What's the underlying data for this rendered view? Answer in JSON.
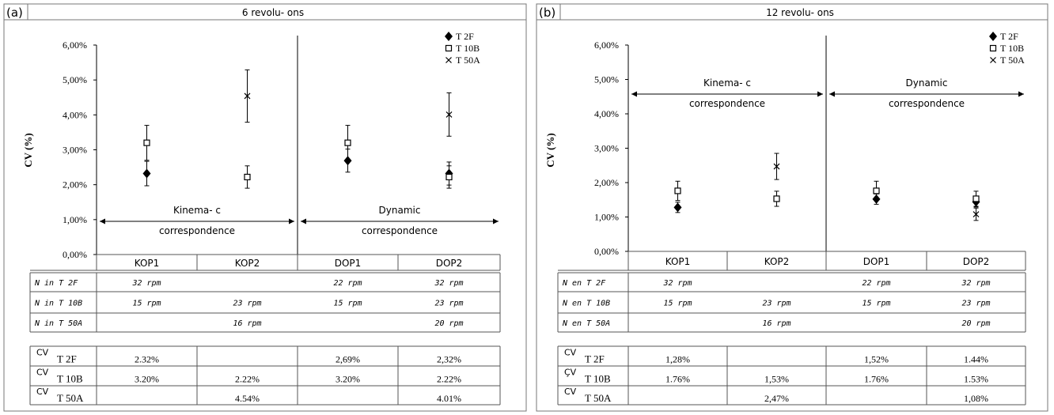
{
  "colors": {
    "marker": "#000000",
    "grid": "#555555",
    "frame": "#777777"
  },
  "chart_data": [
    {
      "type": "scatter",
      "panel_label": "(a)",
      "title": "6 revolu- ons",
      "ylabel": "CV (%)",
      "ylim": [
        0,
        6
      ],
      "y_ticks": [
        "0,00%",
        "1,00%",
        "2,00%",
        "3,00%",
        "4,00%",
        "5,00%",
        "6,00%"
      ],
      "categories": [
        "KOP1",
        "KOP2",
        "DOP1",
        "DOP2"
      ],
      "series": [
        {
          "name": "T 2F",
          "marker": "diamond",
          "values": [
            2.32,
            null,
            2.69,
            2.32
          ],
          "errors": [
            0.35,
            null,
            0.33,
            0.33
          ]
        },
        {
          "name": "T 10B",
          "marker": "square",
          "values": [
            3.2,
            2.22,
            3.2,
            2.22
          ],
          "errors": [
            0.5,
            0.32,
            0.5,
            0.32
          ]
        },
        {
          "name": "T 50A",
          "marker": "x",
          "values": [
            null,
            4.54,
            null,
            4.01
          ],
          "errors": [
            null,
            0.75,
            null,
            0.62
          ]
        }
      ],
      "annotations": [
        {
          "line1": "Kinema- c",
          "line2": "correspondence"
        },
        {
          "line1": "Dynamic",
          "line2": "correspondence"
        }
      ],
      "legend_position": "top-right",
      "n_rows": [
        {
          "label": "N in T 2F",
          "cells": [
            "32 rpm",
            "",
            "22 rpm",
            "32 rpm"
          ]
        },
        {
          "label": "N in T 10B",
          "cells": [
            "15 rpm",
            "23 rpm",
            "15 rpm",
            "23 rpm"
          ]
        },
        {
          "label": "N in T 50A",
          "cells": [
            "",
            "16 rpm",
            "",
            "20 rpm"
          ]
        }
      ],
      "cv_rows": [
        {
          "cv": "CV",
          "label": "T 2F",
          "cells": [
            "2.32%",
            "",
            "2,69%",
            "2,32%"
          ]
        },
        {
          "cv": "CV",
          "label": "T 10B",
          "cells": [
            "3.20%",
            "2.22%",
            "3.20%",
            "2.22%"
          ]
        },
        {
          "cv": "CV",
          "label": "T 50A",
          "cells": [
            "",
            "4.54%",
            "",
            "4.01%"
          ]
        }
      ]
    },
    {
      "type": "scatter",
      "panel_label": "(b)",
      "title": "12 revolu- ons",
      "ylabel": "CV (%)",
      "ylim": [
        0,
        6
      ],
      "y_ticks": [
        "0,00%",
        "1,00%",
        "2,00%",
        "3,00%",
        "4,00%",
        "5,00%",
        "6,00%"
      ],
      "categories": [
        "KOP1",
        "KOP2",
        "DOP1",
        "DOP2"
      ],
      "series": [
        {
          "name": "T 2F",
          "marker": "diamond",
          "values": [
            1.28,
            null,
            1.52,
            1.44
          ],
          "errors": [
            0.15,
            null,
            0.15,
            0.15
          ]
        },
        {
          "name": "T 10B",
          "marker": "square",
          "values": [
            1.76,
            1.53,
            1.76,
            1.53
          ],
          "errors": [
            0.28,
            0.22,
            0.28,
            0.22
          ]
        },
        {
          "name": "T 50A",
          "marker": "x",
          "values": [
            null,
            2.47,
            null,
            1.08
          ],
          "errors": [
            null,
            0.38,
            null,
            0.18
          ]
        }
      ],
      "annotations": [
        {
          "line1": "Kinema- c",
          "line2": "correspondence"
        },
        {
          "line1": "Dynamic",
          "line2": "correspondence"
        }
      ],
      "legend_position": "top-right",
      "n_rows": [
        {
          "label": "N en T 2F",
          "cells": [
            "32 rpm",
            "",
            "22 rpm",
            "32 rpm"
          ]
        },
        {
          "label": "N en T 10B",
          "cells": [
            "15 rpm",
            "23 rpm",
            "15 rpm",
            "23 rpm"
          ]
        },
        {
          "label": "N en T 50A",
          "cells": [
            "",
            "16 rpm",
            "",
            "20 rpm"
          ]
        }
      ],
      "cv_rows": [
        {
          "cv": "CV",
          "label": "T 2F",
          "cells": [
            "1,28%",
            "",
            "1,52%",
            "1.44%"
          ]
        },
        {
          "cv": "ÇV",
          "label": "T 10B",
          "cells": [
            "1.76%",
            "1,53%",
            "1.76%",
            "1.53%"
          ]
        },
        {
          "cv": "CV",
          "label": "T 50A",
          "cells": [
            "",
            "2,47%",
            "",
            "1,08%"
          ]
        }
      ]
    }
  ]
}
